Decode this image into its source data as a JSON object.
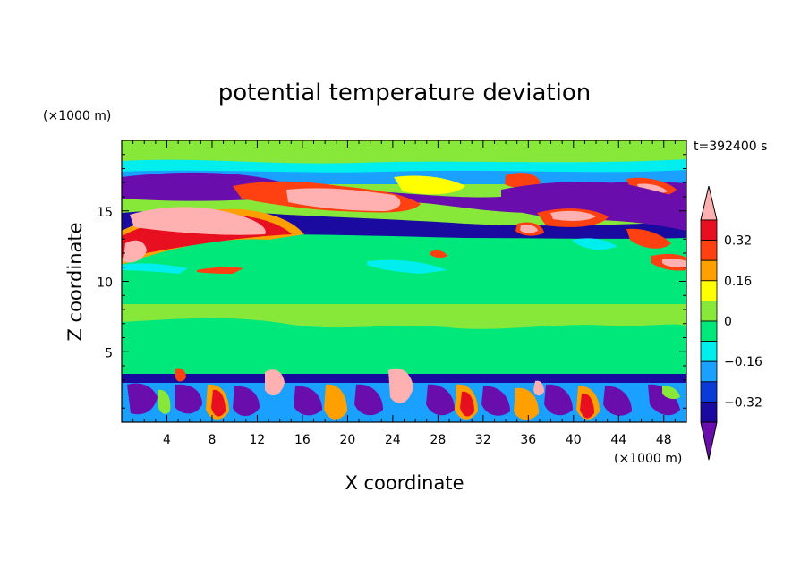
{
  "chart_data": {
    "type": "heatmap",
    "title": "potential temperature deviation",
    "xlabel": "X coordinate",
    "ylabel": "Z coordinate",
    "x_unit": "(×1000 m)",
    "y_unit": "(×1000 m)",
    "time_label": "t=392400 s",
    "xlim": [
      0,
      50
    ],
    "ylim": [
      0,
      20
    ],
    "x_ticks": [
      4,
      8,
      12,
      16,
      20,
      24,
      28,
      32,
      36,
      40,
      44,
      48
    ],
    "x_tick_labels": [
      "4",
      "8",
      "12",
      "16",
      "20",
      "24",
      "28",
      "32",
      "36",
      "40",
      "44",
      "48"
    ],
    "y_ticks": [
      5,
      10,
      15
    ],
    "y_tick_labels": [
      "5",
      "10",
      "15"
    ],
    "colorbar": {
      "levels": [
        -0.4,
        -0.32,
        -0.24,
        -0.16,
        -0.08,
        0,
        0.08,
        0.16,
        0.24,
        0.32,
        0.4
      ],
      "tick_values": [
        0.32,
        0.16,
        0,
        -0.16,
        -0.32
      ],
      "tick_labels": [
        "0.32",
        "0.16",
        "0",
        "−0.16",
        "−0.32"
      ],
      "colors": [
        "#6a0dad",
        "#1a0aa0",
        "#0a3ad8",
        "#1aa0ff",
        "#00eeee",
        "#00e87a",
        "#88e83a",
        "#ffff00",
        "#ffa000",
        "#ff4010",
        "#e81020",
        "#ffb0b0"
      ],
      "extend": "both"
    },
    "regions_description_free": true
  }
}
